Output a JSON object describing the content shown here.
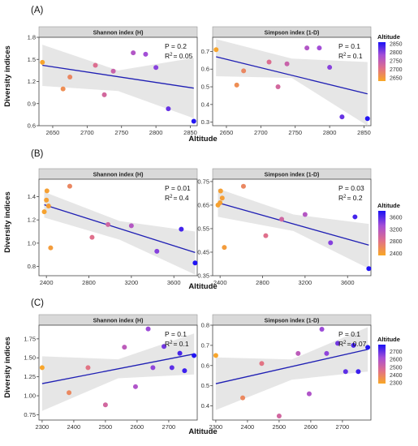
{
  "figure": {
    "y_axis_label": "Diversity indices",
    "x_axis_label": "Altitude",
    "legend_title": "Altitude"
  },
  "chart_data": [
    {
      "type": "scatter",
      "panel_label": "(A)",
      "facet": "Shannon index (H)",
      "annotation_p": "P = 0.2",
      "annotation_r2_value": "= 0.05",
      "xlim": [
        2630,
        2860
      ],
      "ylim": [
        0.6,
        1.8
      ],
      "xticks": [
        "2650",
        "2700",
        "2750",
        "2800",
        "2850"
      ],
      "yticks": [
        "0.6",
        "0.9",
        "1.2",
        "1.5",
        "1.8"
      ],
      "x": [
        2635,
        2665,
        2675,
        2712,
        2725,
        2738,
        2767,
        2785,
        2800,
        2818,
        2855
      ],
      "y": [
        1.46,
        1.1,
        1.26,
        1.42,
        1.02,
        1.34,
        1.59,
        1.57,
        1.39,
        0.83,
        0.66
      ],
      "fit_line": [
        [
          2635,
          1.42
        ],
        [
          2855,
          1.11
        ]
      ],
      "ci_band": {
        "x": [
          2635,
          2745,
          2855
        ],
        "upper": [
          1.7,
          1.35,
          1.52
        ],
        "lower": [
          1.14,
          1.07,
          0.7
        ]
      },
      "grid": false
    },
    {
      "type": "scatter",
      "panel_label": "",
      "facet": "Simpson index (1-D)",
      "annotation_p": "P = 0.1",
      "annotation_r2_value": "= 0.1",
      "xlim": [
        2630,
        2860
      ],
      "ylim": [
        0.28,
        0.78
      ],
      "xticks": [
        "2650",
        "2700",
        "2750",
        "2800",
        "2850"
      ],
      "yticks": [
        "0.3",
        "0.4",
        "0.5",
        "0.6",
        "0.7"
      ],
      "x": [
        2635,
        2665,
        2675,
        2712,
        2725,
        2738,
        2767,
        2785,
        2800,
        2818,
        2855
      ],
      "y": [
        0.71,
        0.51,
        0.59,
        0.64,
        0.5,
        0.63,
        0.72,
        0.72,
        0.61,
        0.33,
        0.32
      ],
      "fit_line": [
        [
          2635,
          0.67
        ],
        [
          2855,
          0.46
        ]
      ],
      "ci_band": {
        "x": [
          2635,
          2745,
          2855
        ],
        "upper": [
          0.77,
          0.66,
          0.64
        ],
        "lower": [
          0.56,
          0.55,
          0.28
        ]
      },
      "grid": false
    },
    {
      "type": "scatter",
      "panel_label": "(B)",
      "facet": "Shannon index (H)",
      "annotation_p": "P = 0.01",
      "annotation_r2_value": "= 0.4",
      "xlim": [
        2330,
        3820
      ],
      "ylim": [
        0.72,
        1.55
      ],
      "xticks": [
        "2400",
        "2800",
        "3200",
        "3600"
      ],
      "yticks": [
        "0.8",
        "1.0",
        "1.2",
        "1.4"
      ],
      "x": [
        2380,
        2400,
        2405,
        2420,
        2440,
        2620,
        2830,
        2980,
        3200,
        3440,
        3670,
        3800
      ],
      "y": [
        1.27,
        1.37,
        1.45,
        1.32,
        0.96,
        1.49,
        1.05,
        1.16,
        1.15,
        0.93,
        1.12,
        0.83
      ],
      "fit_line": [
        [
          2380,
          1.33
        ],
        [
          3800,
          0.92
        ]
      ],
      "ci_band": {
        "x": [
          2380,
          3090,
          3800
        ],
        "upper": [
          1.44,
          1.19,
          1.1
        ],
        "lower": [
          1.22,
          1.03,
          0.73
        ]
      },
      "grid": false
    },
    {
      "type": "scatter",
      "panel_label": "",
      "facet": "Simpson index (1-D)",
      "annotation_p": "P = 0.03",
      "annotation_r2_value": "= 0.2",
      "xlim": [
        2330,
        3820
      ],
      "ylim": [
        0.35,
        0.76
      ],
      "xticks": [
        "2400",
        "2800",
        "3200",
        "3600"
      ],
      "yticks": [
        "0.35",
        "0.45",
        "0.55",
        "0.65",
        "0.75"
      ],
      "x": [
        2380,
        2400,
        2405,
        2420,
        2440,
        2620,
        2830,
        2980,
        3200,
        3440,
        3670,
        3800
      ],
      "y": [
        0.65,
        0.66,
        0.71,
        0.68,
        0.47,
        0.73,
        0.52,
        0.59,
        0.61,
        0.49,
        0.6,
        0.38
      ],
      "fit_line": [
        [
          2380,
          0.66
        ],
        [
          3800,
          0.48
        ]
      ],
      "ci_band": {
        "x": [
          2380,
          3090,
          3800
        ],
        "upper": [
          0.72,
          0.61,
          0.57
        ],
        "lower": [
          0.6,
          0.54,
          0.38
        ]
      },
      "grid": false
    },
    {
      "type": "scatter",
      "panel_label": "(C)",
      "facet": "Shannon index (H)",
      "annotation_p": "P = 0.1",
      "annotation_r2_value": "= 0.1",
      "xlim": [
        2290,
        2790
      ],
      "ylim": [
        0.68,
        1.93
      ],
      "xticks": [
        "2300",
        "2400",
        "2500",
        "2600",
        "2700"
      ],
      "yticks": [
        "0.75",
        "1.00",
        "1.25",
        "1.50",
        "1.75"
      ],
      "x": [
        2300,
        2385,
        2445,
        2500,
        2560,
        2595,
        2635,
        2650,
        2685,
        2710,
        2735,
        2750,
        2780
      ],
      "y": [
        1.37,
        1.04,
        1.37,
        0.88,
        1.64,
        1.12,
        1.88,
        1.37,
        1.65,
        1.37,
        1.56,
        1.33,
        1.53
      ],
      "fit_line": [
        [
          2300,
          1.16
        ],
        [
          2780,
          1.55
        ]
      ],
      "ci_band": {
        "x": [
          2300,
          2540,
          2780
        ],
        "upper": [
          1.52,
          1.48,
          1.82
        ],
        "lower": [
          0.8,
          1.23,
          1.28
        ]
      },
      "grid": false
    },
    {
      "type": "scatter",
      "panel_label": "",
      "facet": "Simpson index (1-D)",
      "annotation_p": "P = 0.1",
      "annotation_r2_value": "= 0.07",
      "xlim": [
        2290,
        2790
      ],
      "ylim": [
        0.33,
        0.8
      ],
      "xticks": [
        "2300",
        "2400",
        "2500",
        "2600",
        "2700"
      ],
      "yticks": [
        "0.4",
        "0.5",
        "0.6",
        "0.7",
        "0.8"
      ],
      "x": [
        2300,
        2385,
        2445,
        2500,
        2560,
        2595,
        2635,
        2650,
        2685,
        2710,
        2735,
        2750,
        2780
      ],
      "y": [
        0.65,
        0.44,
        0.61,
        0.35,
        0.66,
        0.46,
        0.78,
        0.66,
        0.71,
        0.57,
        0.7,
        0.57,
        0.69
      ],
      "fit_line": [
        [
          2300,
          0.51
        ],
        [
          2780,
          0.68
        ]
      ],
      "ci_band": {
        "x": [
          2300,
          2540,
          2780
        ],
        "upper": [
          0.64,
          0.63,
          0.79
        ],
        "lower": [
          0.38,
          0.53,
          0.57
        ]
      },
      "grid": false
    }
  ],
  "legends": [
    {
      "title": "Altitude",
      "range": [
        2630,
        2860
      ],
      "ticks": [
        "2850",
        "2800",
        "2750",
        "2700",
        "2650"
      ],
      "tick_values": [
        2850,
        2800,
        2750,
        2700,
        2650
      ],
      "colors": [
        "#f9a825",
        "#e0708b",
        "#a64fd6",
        "#1a11f5"
      ]
    },
    {
      "title": "Altitude",
      "range": [
        2330,
        3820
      ],
      "ticks": [
        "3600",
        "3200",
        "2800",
        "2400"
      ],
      "tick_values": [
        3600,
        3200,
        2800,
        2400
      ],
      "colors": [
        "#f9a825",
        "#e0708b",
        "#a64fd6",
        "#1a11f5"
      ]
    },
    {
      "title": "Altitude",
      "range": [
        2290,
        2790
      ],
      "ticks": [
        "2700",
        "2600",
        "2500",
        "2400",
        "2300"
      ],
      "tick_values": [
        2700,
        2600,
        2500,
        2400,
        2300
      ],
      "colors": [
        "#f9a825",
        "#e0708b",
        "#a64fd6",
        "#1a11f5"
      ]
    }
  ],
  "colors": {
    "fit_line": "#1f1fb4",
    "ci_band": "#e6e6e6",
    "strip_bg": "#d9d9d9",
    "low_altitude": "#f9a825",
    "high_altitude": "#1a11f5"
  }
}
